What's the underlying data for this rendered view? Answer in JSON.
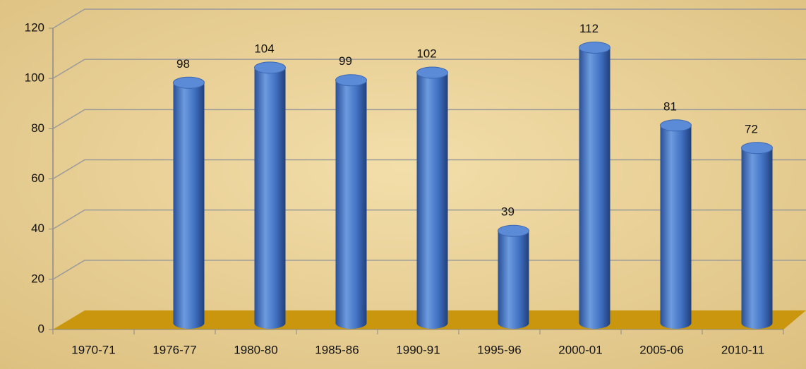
{
  "chart_data": {
    "type": "bar",
    "categories": [
      "1970-71",
      "1976-77",
      "1980-80",
      "1985-86",
      "1990-91",
      "1995-96",
      "2000-01",
      "2005-06",
      "2010-11"
    ],
    "values": [
      null,
      98,
      104,
      99,
      102,
      39,
      112,
      81,
      72
    ],
    "color": "#3f6fc0",
    "ylim": [
      0,
      120
    ],
    "yticks": [
      0,
      20,
      40,
      60,
      80,
      100,
      120
    ],
    "grid": true
  }
}
